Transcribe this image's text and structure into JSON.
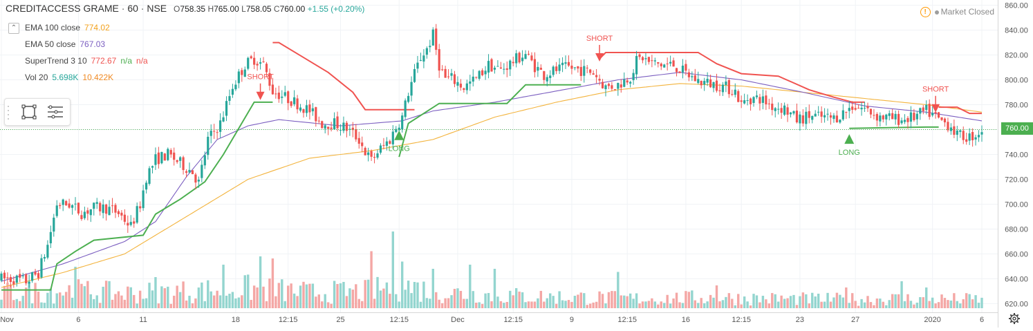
{
  "header": {
    "symbol": "CREDITACCESS GRAME",
    "interval": "60",
    "exchange": "NSE",
    "open_label": "O",
    "open": "758.35",
    "high_label": "H",
    "high": "765.00",
    "low_label": "L",
    "low": "758.05",
    "close_label": "C",
    "close": "760.00",
    "change": "+1.55 (+0.20%)",
    "sep": "·"
  },
  "indicators": [
    {
      "name": "EMA 100 close",
      "value": "774.02",
      "color": "#f3b33c"
    },
    {
      "name": "EMA 50 close",
      "value": "767.03",
      "color": "#7b5ec0"
    },
    {
      "name": "SuperTrend 3 10",
      "value": "772.67",
      "extra1": "n/a",
      "extra2": "n/a",
      "color": "#f05350"
    },
    {
      "name": "Vol 20",
      "value": "5.698K",
      "value2": "10.422K",
      "color": "#26a69a"
    }
  ],
  "status": {
    "market": "Market Closed",
    "warn_glyph": "!"
  },
  "last_price": "760.00",
  "icons": [
    "chevron-up-icon",
    "rectangle-tool-icon",
    "lines-tool-icon",
    "warning-icon",
    "gear-icon"
  ],
  "colors": {
    "up": "#26a69a",
    "down": "#ef5350",
    "vol_up": "#93d5cf",
    "vol_down": "#f4a7a5",
    "ema100": "#f3b33c",
    "ema50": "#7b5ec0",
    "st_long": "#4caf50",
    "st_short": "#f05350"
  },
  "chart_data": {
    "type": "candlestick",
    "x_ticks": [
      "Nov",
      "6",
      "11",
      "18",
      "12:15",
      "25",
      "12:15",
      "Dec",
      "12:15",
      "9",
      "12:15",
      "16",
      "12:15",
      "23",
      "27",
      "2020",
      "6"
    ],
    "y_ticks": [
      "620.00",
      "640.00",
      "660.00",
      "680.00",
      "700.00",
      "720.00",
      "740.00",
      "760.00",
      "780.00",
      "800.00",
      "820.00",
      "840.00",
      "860.00"
    ],
    "ylim": [
      618,
      862
    ],
    "annotations": [
      {
        "text": "SHORT",
        "type": "short",
        "i": 84,
        "y": 786
      },
      {
        "text": "LONG",
        "type": "long",
        "i": 129,
        "y": 756
      },
      {
        "text": "SHORT",
        "type": "short",
        "i": 194,
        "y": 817
      },
      {
        "text": "LONG",
        "type": "long",
        "i": 275,
        "y": 753
      },
      {
        "text": "SHORT",
        "type": "short",
        "i": 303,
        "y": 776
      }
    ],
    "ohlc_path": [
      [
        0,
        640
      ],
      [
        4,
        640
      ],
      [
        8,
        638
      ],
      [
        12,
        645
      ],
      [
        15,
        667
      ],
      [
        18,
        700
      ],
      [
        22,
        700
      ],
      [
        26,
        693
      ],
      [
        30,
        697
      ],
      [
        34,
        697
      ],
      [
        38,
        693
      ],
      [
        42,
        682
      ],
      [
        45,
        700
      ],
      [
        47,
        722
      ],
      [
        50,
        736
      ],
      [
        54,
        740
      ],
      [
        58,
        733
      ],
      [
        62,
        726
      ],
      [
        64,
        717
      ],
      [
        67,
        752
      ],
      [
        71,
        765
      ],
      [
        75,
        795
      ],
      [
        79,
        812
      ],
      [
        82,
        817
      ],
      [
        85,
        812
      ],
      [
        88,
        791
      ],
      [
        92,
        786
      ],
      [
        96,
        781
      ],
      [
        100,
        775
      ],
      [
        104,
        765
      ],
      [
        108,
        765
      ],
      [
        112,
        761
      ],
      [
        116,
        752
      ],
      [
        118,
        742
      ],
      [
        120,
        735
      ],
      [
        122,
        742
      ],
      [
        126,
        752
      ],
      [
        128,
        762
      ],
      [
        130,
        770
      ],
      [
        132,
        790
      ],
      [
        134,
        805
      ],
      [
        136,
        818
      ],
      [
        138,
        825
      ],
      [
        140,
        836
      ],
      [
        142,
        812
      ],
      [
        144,
        801
      ],
      [
        146,
        801
      ],
      [
        150,
        794
      ],
      [
        154,
        801
      ],
      [
        158,
        812
      ],
      [
        162,
        808
      ],
      [
        166,
        815
      ],
      [
        170,
        821
      ],
      [
        173,
        811
      ],
      [
        176,
        804
      ],
      [
        180,
        808
      ],
      [
        184,
        810
      ],
      [
        188,
        808
      ],
      [
        192,
        806
      ],
      [
        196,
        794
      ],
      [
        200,
        796
      ],
      [
        204,
        803
      ],
      [
        206,
        815
      ],
      [
        208,
        818
      ],
      [
        210,
        814
      ],
      [
        214,
        812
      ],
      [
        218,
        812
      ],
      [
        222,
        805
      ],
      [
        226,
        799
      ],
      [
        230,
        797
      ],
      [
        234,
        795
      ],
      [
        238,
        791
      ],
      [
        240,
        780
      ],
      [
        242,
        785
      ],
      [
        246,
        785
      ],
      [
        250,
        779
      ],
      [
        254,
        777
      ],
      [
        258,
        768
      ],
      [
        262,
        771
      ],
      [
        266,
        770
      ],
      [
        270,
        769
      ],
      [
        274,
        775
      ],
      [
        276,
        779
      ],
      [
        280,
        777
      ],
      [
        284,
        771
      ],
      [
        288,
        769
      ],
      [
        292,
        768
      ],
      [
        296,
        770
      ],
      [
        300,
        775
      ],
      [
        304,
        768
      ],
      [
        308,
        763
      ],
      [
        310,
        755
      ],
      [
        314,
        754
      ],
      [
        316,
        756
      ],
      [
        318,
        760
      ]
    ],
    "ema50_path": [
      [
        0,
        638
      ],
      [
        20,
        652
      ],
      [
        40,
        670
      ],
      [
        50,
        686
      ],
      [
        60,
        722
      ],
      [
        70,
        752
      ],
      [
        80,
        763
      ],
      [
        90,
        768
      ],
      [
        110,
        763
      ],
      [
        130,
        767
      ],
      [
        140,
        775
      ],
      [
        160,
        782
      ],
      [
        180,
        791
      ],
      [
        200,
        800
      ],
      [
        220,
        806
      ],
      [
        240,
        800
      ],
      [
        260,
        790
      ],
      [
        280,
        779
      ],
      [
        300,
        774
      ],
      [
        318,
        767
      ]
    ],
    "ema100_path": [
      [
        0,
        633
      ],
      [
        20,
        645
      ],
      [
        40,
        660
      ],
      [
        60,
        690
      ],
      [
        80,
        720
      ],
      [
        100,
        737
      ],
      [
        120,
        743
      ],
      [
        140,
        752
      ],
      [
        160,
        770
      ],
      [
        180,
        782
      ],
      [
        200,
        792
      ],
      [
        220,
        797
      ],
      [
        240,
        795
      ],
      [
        260,
        790
      ],
      [
        280,
        785
      ],
      [
        300,
        780
      ],
      [
        318,
        774
      ]
    ],
    "supertrend_segments": [
      {
        "type": "long",
        "points": [
          [
            0,
            631
          ],
          [
            16,
            631
          ],
          [
            18,
            652
          ],
          [
            24,
            662
          ],
          [
            30,
            671
          ],
          [
            46,
            675
          ],
          [
            50,
            692
          ],
          [
            58,
            704
          ],
          [
            66,
            718
          ],
          [
            72,
            740
          ],
          [
            82,
            782
          ],
          [
            88,
            782
          ]
        ]
      },
      {
        "type": "short",
        "points": [
          [
            88,
            830
          ],
          [
            90,
            830
          ],
          [
            98,
            818
          ],
          [
            106,
            806
          ],
          [
            114,
            790
          ],
          [
            118,
            776
          ],
          [
            134,
            776
          ]
        ]
      },
      {
        "type": "long",
        "points": [
          [
            129,
            738
          ],
          [
            132,
            765
          ],
          [
            142,
            781
          ],
          [
            164,
            781
          ],
          [
            170,
            796
          ],
          [
            188,
            796
          ]
        ]
      },
      {
        "type": "short",
        "points": [
          [
            194,
            817
          ],
          [
            196,
            822
          ],
          [
            226,
            822
          ],
          [
            232,
            813
          ],
          [
            240,
            805
          ],
          [
            252,
            803
          ],
          [
            262,
            792
          ],
          [
            270,
            786
          ],
          [
            276,
            782
          ],
          [
            280,
            782
          ]
        ]
      },
      {
        "type": "long",
        "points": [
          [
            275,
            761
          ],
          [
            300,
            762
          ],
          [
            304,
            762
          ]
        ]
      },
      {
        "type": "short",
        "points": [
          [
            304,
            778
          ],
          [
            310,
            778
          ],
          [
            314,
            773
          ],
          [
            318,
            773
          ]
        ]
      }
    ],
    "volume_envelope": [
      [
        0,
        0.25
      ],
      [
        20,
        0.3
      ],
      [
        40,
        0.25
      ],
      [
        60,
        0.28
      ],
      [
        80,
        0.33
      ],
      [
        100,
        0.26
      ],
      [
        120,
        0.28
      ],
      [
        128,
        0.4
      ],
      [
        136,
        0.32
      ],
      [
        150,
        0.24
      ],
      [
        170,
        0.2
      ],
      [
        190,
        0.18
      ],
      [
        210,
        0.16
      ],
      [
        230,
        0.18
      ],
      [
        250,
        0.16
      ],
      [
        270,
        0.15
      ],
      [
        290,
        0.16
      ],
      [
        310,
        0.15
      ],
      [
        318,
        0.15
      ]
    ],
    "volume_spikes": [
      [
        24,
        0.4
      ],
      [
        50,
        0.3
      ],
      [
        72,
        0.42
      ],
      [
        84,
        0.5
      ],
      [
        88,
        0.48
      ],
      [
        120,
        0.55
      ],
      [
        127,
        0.74
      ],
      [
        130,
        0.45
      ],
      [
        140,
        0.38
      ],
      [
        152,
        0.42
      ],
      [
        160,
        0.38
      ],
      [
        200,
        0.35
      ],
      [
        232,
        0.22
      ],
      [
        274,
        0.2
      ],
      [
        292,
        0.26
      ],
      [
        300,
        0.2
      ]
    ]
  }
}
